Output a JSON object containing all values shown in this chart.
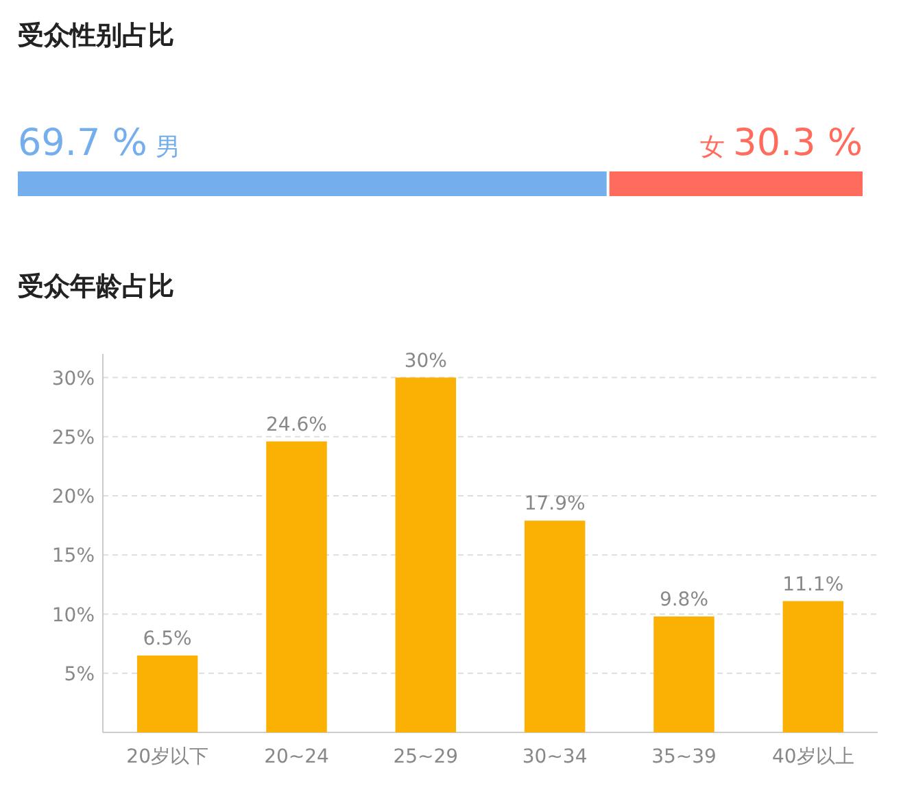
{
  "chart_data": [
    {
      "type": "bar",
      "title": "受众性别占比",
      "orientation": "horizontal",
      "stacked": true,
      "categories": [
        null
      ],
      "series": [
        {
          "name": "男",
          "color": "#74aeec",
          "values": [
            69.7
          ],
          "value_labels": [
            "69.7 %"
          ]
        },
        {
          "name": "女",
          "color": "#ff6b5c",
          "values": [
            30.3
          ],
          "value_labels": [
            "30.3 %"
          ]
        }
      ]
    },
    {
      "type": "bar",
      "title": "受众年龄占比",
      "categories": [
        "20岁以下",
        "20~24",
        "25~29",
        "30~34",
        "35~39",
        "40岁以上"
      ],
      "values": [
        6.5,
        24.6,
        30,
        17.9,
        9.8,
        11.1
      ],
      "color": "#fbb103",
      "value_labels": [
        "6.5%",
        "24.6%",
        "30%",
        "17.9%",
        "9.8%",
        "11.1%"
      ],
      "ylim": [
        0,
        32
      ],
      "grid": "y",
      "yticks": [
        {
          "value": 5,
          "label": "5%"
        },
        {
          "value": 10,
          "label": "10%"
        },
        {
          "value": 15,
          "label": "15%"
        },
        {
          "value": 20,
          "label": "20%"
        },
        {
          "value": 25,
          "label": "25%"
        },
        {
          "value": 30,
          "label": "30%"
        }
      ]
    }
  ]
}
